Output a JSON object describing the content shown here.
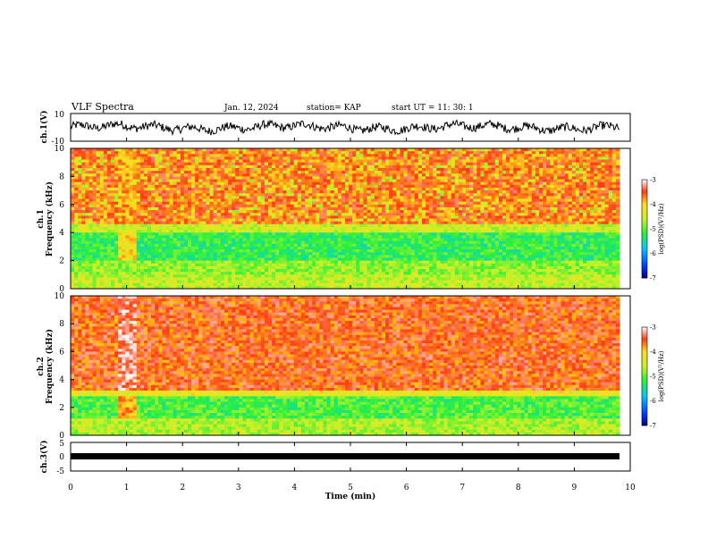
{
  "header": {
    "title": "VLF Spectra",
    "date": "Jan. 12, 2024",
    "station": "station= KAP",
    "start": "start  UT  =   11: 30: 1"
  },
  "chart_data": [
    {
      "type": "line",
      "ylabel": "ch.1(V)",
      "ylim": [
        -10,
        10
      ],
      "yticks": [
        "10",
        "-10"
      ],
      "xlim": [
        0,
        10
      ],
      "description_values": "oscillating waveform around 0 V, amplitude ~3-5 V, ending at ~9.85 min"
    },
    {
      "type": "heatmap",
      "ylabel_line1": "ch.1",
      "ylabel_line2": "Frequency (kHz)",
      "ylim": [
        0,
        10
      ],
      "yticks": [
        "0",
        "2",
        "4",
        "6",
        "8",
        "10"
      ],
      "xlim": [
        0,
        10
      ],
      "colorbar": {
        "label": "log(PSD)(V²/Hz)",
        "ticks": [
          "-3",
          "-4",
          "-5",
          "-6",
          "-7"
        ],
        "range": [
          -7,
          -3
        ]
      }
    },
    {
      "type": "heatmap",
      "ylabel_line1": "ch.2",
      "ylabel_line2": "Frequency (kHz)",
      "ylim": [
        0,
        10
      ],
      "yticks": [
        "0",
        "2",
        "4",
        "6",
        "8",
        "10"
      ],
      "xlim": [
        0,
        10
      ],
      "colorbar": {
        "label": "log(PSD)(V²/Hz)",
        "ticks": [
          "-3",
          "-4",
          "-5",
          "-6",
          "-7"
        ],
        "range": [
          -7,
          -3
        ]
      }
    },
    {
      "type": "line",
      "ylabel": "ch.3(V)",
      "ylim": [
        -5,
        5
      ],
      "yticks": [
        "5",
        "0",
        "-5"
      ],
      "xlim": [
        0,
        10
      ],
      "xlabel": "Time (min)",
      "xticks": [
        "0",
        "1",
        "2",
        "3",
        "4",
        "5",
        "6",
        "7",
        "8",
        "9",
        "10"
      ]
    }
  ],
  "colors": {
    "high": "#ff1a1a",
    "mid_high": "#ffd21a",
    "mid": "#30f030",
    "low": "#2f8fff",
    "min": "#000080"
  }
}
